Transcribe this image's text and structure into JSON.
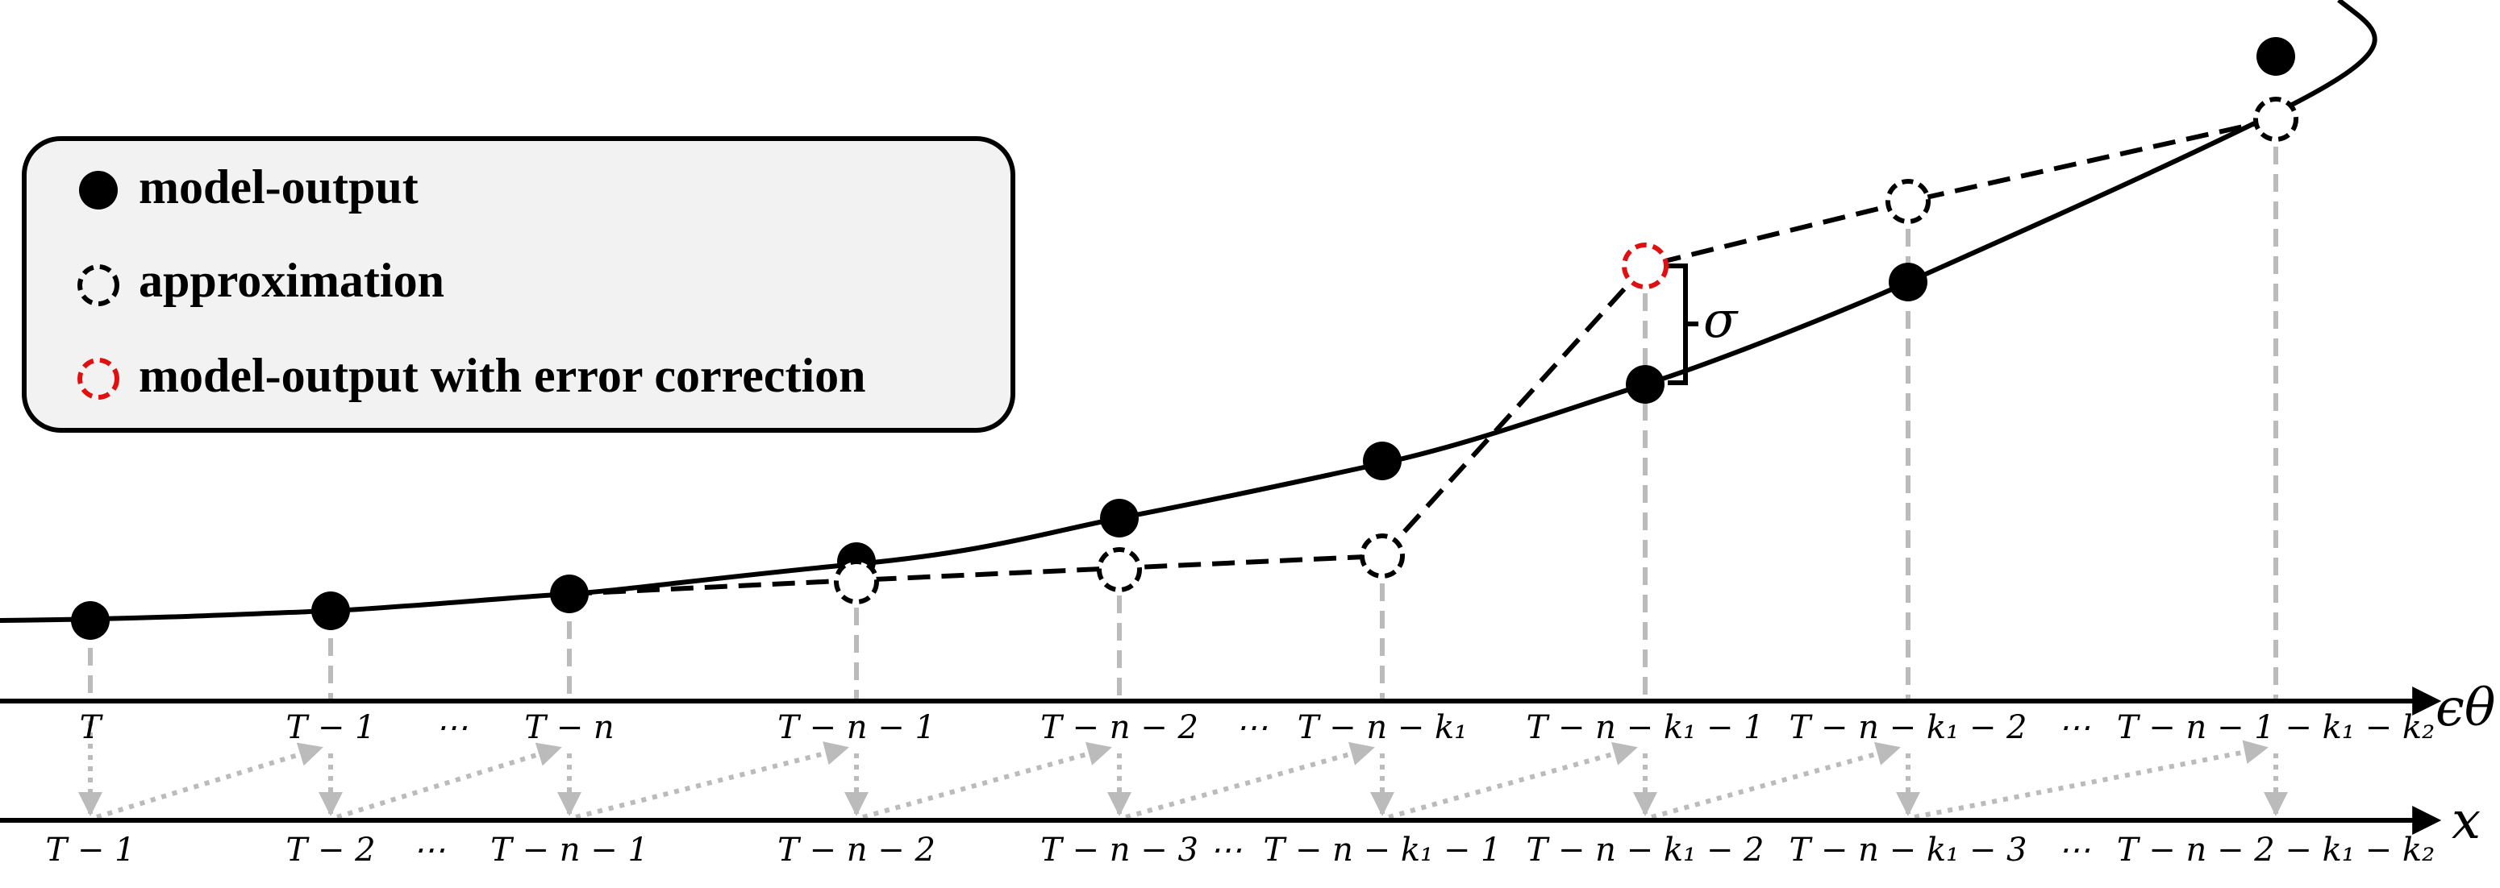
{
  "legend": {
    "items": [
      {
        "label": "model-output",
        "marker": "filled-black-circle"
      },
      {
        "label": "approximation",
        "marker": "dashed-black-circle"
      },
      {
        "label": "model-output with error correction",
        "marker": "dashed-red-circle"
      }
    ]
  },
  "axes": {
    "top_name": "ϵθ",
    "bottom_name": "x",
    "top_ticks": [
      "T",
      "T − 1",
      "⋯",
      "T − n",
      "T − n − 1",
      "T − n − 2",
      "⋯",
      "T − n − k₁",
      "T − n − k₁ − 1",
      "T − n − k₁ − 2",
      "⋯",
      "T − n − 1 − k₁ − k₂"
    ],
    "bottom_ticks": [
      "T − 1",
      "T − 2",
      "⋯",
      "T − n − 1",
      "T − n − 2",
      "T − n − 3",
      "⋯",
      "T − n − k₁ − 1",
      "T − n − k₁ − 2",
      "T − n − k₁ − 3",
      "⋯",
      "T − n − 2 − k₁ − k₂"
    ]
  },
  "annotation": {
    "gap_label": "σ"
  },
  "colors": {
    "curve": "#000000",
    "approximation": "#000000",
    "error_correction": "#e01010",
    "guide_lines": "#bbbbbb",
    "legend_bg": "#f2f2f2"
  }
}
